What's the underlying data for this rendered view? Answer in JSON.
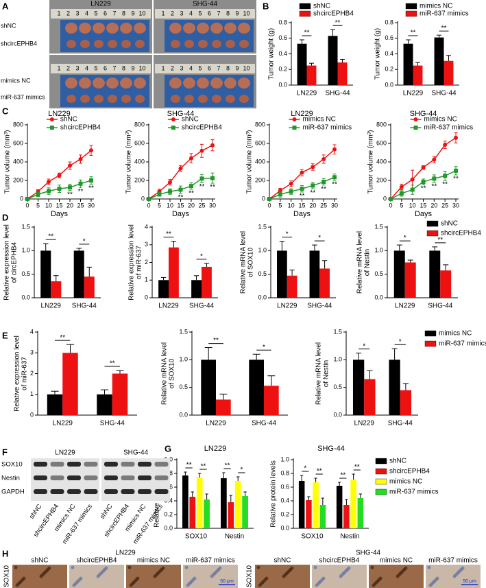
{
  "panel_a": {
    "letter": "A",
    "columns": [
      "LN229",
      "SHG-44"
    ],
    "rows": [
      "shNC",
      "shcircEPHB4",
      "mimics NC",
      "miR-637 mimics"
    ],
    "ruler": [
      "1",
      "2",
      "3",
      "4",
      "5",
      "6",
      "7",
      "8",
      "9",
      "10"
    ]
  },
  "chart_data": [
    {
      "type": "bar",
      "letter": "B",
      "ylabel": [
        "Tumor weight (g)"
      ],
      "categories": [
        "LN229",
        "SHG-44"
      ],
      "series": [
        {
          "name": "shNC",
          "color": "#000000",
          "values": [
            0.53,
            0.63
          ],
          "errors": [
            0.05,
            0.08
          ]
        },
        {
          "name": "shcircEPHB4",
          "color": "#ee1111",
          "values": [
            0.25,
            0.29
          ],
          "errors": [
            0.03,
            0.04
          ]
        }
      ],
      "ylim": [
        0,
        0.8
      ],
      "yticks": [
        {
          "value": 0,
          "label": "0.0"
        },
        0.2,
        0.4,
        0.6,
        0.8
      ],
      "legend": "top-left",
      "significance": [
        {
          "category": 0,
          "label": "**"
        },
        {
          "category": 1,
          "label": "**"
        }
      ]
    },
    {
      "type": "bar",
      "ylabel": [
        "Tumor weight (g)"
      ],
      "categories": [
        "LN229",
        "SHG-44"
      ],
      "series": [
        {
          "name": "mimics NC",
          "color": "#000000",
          "values": [
            0.53,
            0.61
          ],
          "errors": [
            0.05,
            0.03
          ]
        },
        {
          "name": "miR-637 mimics",
          "color": "#ee1111",
          "values": [
            0.25,
            0.31
          ],
          "errors": [
            0.04,
            0.07
          ]
        }
      ],
      "ylim": [
        0,
        0.8
      ],
      "yticks": [
        {
          "value": 0,
          "label": "0.0"
        },
        0.2,
        0.4,
        0.6,
        0.8
      ],
      "legend": "top-left",
      "significance": [
        {
          "category": 0,
          "label": "**"
        },
        {
          "category": 1,
          "label": "**"
        }
      ]
    },
    {
      "type": "line",
      "letter": "C",
      "title": "LN229",
      "xlabel": "Days",
      "ylabel": [
        "Tumor volume (mm³)"
      ],
      "x": [
        0,
        5,
        10,
        15,
        20,
        25,
        30
      ],
      "series": [
        {
          "name": "shNC",
          "color": "#ee1111",
          "marker": "circle",
          "values": [
            0,
            80,
            185,
            255,
            360,
            430,
            525
          ],
          "errors": [
            0,
            20,
            30,
            25,
            40,
            45,
            55
          ]
        },
        {
          "name": "shcircEPHB4",
          "color": "#1f9a2a",
          "marker": "square",
          "values": [
            0,
            50,
            85,
            110,
            125,
            165,
            200
          ],
          "errors": [
            0,
            25,
            35,
            40,
            35,
            40,
            40
          ]
        }
      ],
      "xlim": [
        0,
        30
      ],
      "xticks": [
        0,
        5,
        10,
        15,
        20,
        25,
        30
      ],
      "ylim": [
        0,
        800
      ],
      "yticks": [
        0,
        200,
        400,
        600,
        800
      ],
      "legend": "top",
      "significance": [
        {
          "x": 20,
          "label": "**"
        },
        {
          "x": 25,
          "label": "**"
        },
        {
          "x": 30,
          "label": "**"
        }
      ]
    },
    {
      "type": "line",
      "title": "SHG-44",
      "xlabel": "Days",
      "ylabel": [
        "Tumor volume (mm³)"
      ],
      "x": [
        0,
        5,
        10,
        15,
        20,
        25,
        30
      ],
      "series": [
        {
          "name": "shNC",
          "color": "#ee1111",
          "marker": "circle",
          "values": [
            0,
            80,
            180,
            330,
            440,
            520,
            580
          ],
          "errors": [
            0,
            25,
            30,
            30,
            50,
            70,
            60
          ]
        },
        {
          "name": "shcircEPHB4",
          "color": "#1f9a2a",
          "marker": "square",
          "values": [
            0,
            50,
            80,
            100,
            140,
            220,
            225
          ],
          "errors": [
            0,
            20,
            30,
            40,
            35,
            45,
            55
          ]
        }
      ],
      "xlim": [
        0,
        30
      ],
      "xticks": [
        0,
        5,
        10,
        15,
        20,
        25,
        30
      ],
      "ylim": [
        0,
        800
      ],
      "yticks": [
        0,
        200,
        400,
        600,
        800
      ],
      "legend": "top",
      "significance": [
        {
          "x": 15,
          "label": "**"
        },
        {
          "x": 20,
          "label": "**"
        },
        {
          "x": 25,
          "label": "**"
        },
        {
          "x": 30,
          "label": "**"
        }
      ]
    },
    {
      "type": "line",
      "title": "LN229",
      "xlabel": "Days",
      "ylabel": [
        "Tumor volume (mm³)"
      ],
      "x": [
        0,
        5,
        10,
        15,
        20,
        25,
        30
      ],
      "series": [
        {
          "name": "mimics NC",
          "color": "#ee1111",
          "marker": "circle",
          "values": [
            0,
            90,
            165,
            285,
            345,
            430,
            535
          ],
          "errors": [
            0,
            25,
            30,
            35,
            35,
            45,
            50
          ]
        },
        {
          "name": "miR-637 mimics",
          "color": "#1f9a2a",
          "marker": "square",
          "values": [
            0,
            50,
            80,
            110,
            145,
            185,
            235
          ],
          "errors": [
            0,
            30,
            30,
            35,
            35,
            35,
            35
          ]
        }
      ],
      "xlim": [
        0,
        30
      ],
      "xticks": [
        0,
        5,
        10,
        15,
        20,
        25,
        30
      ],
      "ylim": [
        0,
        800
      ],
      "yticks": [
        0,
        200,
        400,
        600,
        800
      ],
      "legend": "top",
      "significance": [
        {
          "x": 15,
          "label": "**"
        },
        {
          "x": 20,
          "label": "**"
        },
        {
          "x": 25,
          "label": "**"
        },
        {
          "x": 30,
          "label": "**"
        }
      ]
    },
    {
      "type": "line",
      "title": "SHG-44",
      "xlabel": "Days",
      "ylabel": [
        "Tumor volume (mm³)"
      ],
      "x": [
        0,
        5,
        10,
        15,
        20,
        25,
        30
      ],
      "series": [
        {
          "name": "mimics NC",
          "color": "#ee1111",
          "marker": "circle",
          "values": [
            0,
            130,
            210,
            340,
            425,
            585,
            660
          ],
          "errors": [
            0,
            30,
            100,
            20,
            35,
            40,
            55
          ]
        },
        {
          "name": "miR-637 mimics",
          "color": "#1f9a2a",
          "marker": "square",
          "values": [
            0,
            60,
            100,
            185,
            220,
            250,
            305
          ],
          "errors": [
            0,
            30,
            50,
            30,
            40,
            50,
            45
          ]
        }
      ],
      "xlim": [
        0,
        30
      ],
      "xticks": [
        0,
        5,
        10,
        15,
        20,
        25,
        30
      ],
      "ylim": [
        0,
        800
      ],
      "yticks": [
        0,
        200,
        400,
        600,
        800
      ],
      "legend": "top",
      "significance": [
        {
          "x": 15,
          "label": "**"
        },
        {
          "x": 20,
          "label": "**"
        },
        {
          "x": 25,
          "label": "**"
        },
        {
          "x": 30,
          "label": "**"
        }
      ]
    },
    {
      "type": "bar",
      "letter": "D",
      "ylabel": [
        "Relative expression level",
        "of circEPHB4"
      ],
      "categories": [
        "LN229",
        "SHG-44"
      ],
      "series": [
        {
          "color": "#000000",
          "values": [
            1.0,
            1.0
          ],
          "errors": [
            0.15,
            0.05
          ]
        },
        {
          "color": "#ee1111",
          "values": [
            0.35,
            0.45
          ],
          "errors": [
            0.12,
            0.2
          ]
        }
      ],
      "ylim": [
        0,
        1.5
      ],
      "yticks": [
        {
          "value": 0,
          "label": "0.0"
        },
        0.5,
        {
          "value": 1,
          "label": "1.0"
        },
        1.5
      ],
      "significance": [
        {
          "category": 0,
          "label": "**"
        },
        {
          "category": 1,
          "label": "*"
        }
      ]
    },
    {
      "type": "bar",
      "ylabel": [
        "Relative expression level",
        "of miR-637"
      ],
      "categories": [
        "LN229",
        "SHG-44"
      ],
      "series": [
        {
          "color": "#000000",
          "values": [
            1.0,
            1.0
          ],
          "errors": [
            0.15,
            0.25
          ]
        },
        {
          "color": "#ee1111",
          "values": [
            2.85,
            1.75
          ],
          "errors": [
            0.35,
            0.2
          ]
        }
      ],
      "ylim": [
        0,
        4
      ],
      "yticks": [
        0,
        1,
        2,
        3,
        4
      ],
      "significance": [
        {
          "category": 0,
          "label": "**"
        },
        {
          "category": 1,
          "label": "*"
        }
      ]
    },
    {
      "type": "bar",
      "ylabel": [
        "Relative mRNA level",
        "of SOX10"
      ],
      "categories": [
        "LN229",
        "SHG-44"
      ],
      "series": [
        {
          "color": "#000000",
          "values": [
            1.0,
            1.0
          ],
          "errors": [
            0.2,
            0.12
          ]
        },
        {
          "color": "#ee1111",
          "values": [
            0.47,
            0.62
          ],
          "errors": [
            0.12,
            0.17
          ]
        }
      ],
      "ylim": [
        0,
        1.5
      ],
      "yticks": [
        {
          "value": 0,
          "label": "0.0"
        },
        0.5,
        {
          "value": 1,
          "label": "1.0"
        },
        1.5
      ],
      "significance": [
        {
          "category": 0,
          "label": "*"
        },
        {
          "category": 1,
          "label": "*"
        }
      ]
    },
    {
      "type": "bar",
      "ylabel": [
        "Relative mRNA level",
        "of Nestin"
      ],
      "categories": [
        "LN229",
        "SHG-44"
      ],
      "series": [
        {
          "name": "shNC",
          "color": "#000000",
          "values": [
            1.0,
            1.0
          ],
          "errors": [
            0.12,
            0.08
          ]
        },
        {
          "name": "shcircEPHB4",
          "color": "#ee1111",
          "values": [
            0.75,
            0.58
          ],
          "errors": [
            0.05,
            0.12
          ]
        }
      ],
      "ylim": [
        0,
        1.5
      ],
      "yticks": [
        {
          "value": 0,
          "label": "0.0"
        },
        0.5,
        {
          "value": 1,
          "label": "1.0"
        },
        1.5
      ],
      "legend": "top-right",
      "significance": [
        {
          "category": 0,
          "label": "*"
        },
        {
          "category": 1,
          "label": "**"
        }
      ]
    },
    {
      "type": "bar",
      "letter": "E",
      "ylabel": [
        "Relative expression level",
        "of miR-637"
      ],
      "categories": [
        "LN229",
        "SHG-44"
      ],
      "series": [
        {
          "color": "#000000",
          "values": [
            1.0,
            1.0
          ],
          "errors": [
            0.15,
            0.22
          ]
        },
        {
          "color": "#ee1111",
          "values": [
            3.0,
            2.0
          ],
          "errors": [
            0.4,
            0.15
          ]
        }
      ],
      "ylim": [
        0,
        4
      ],
      "yticks": [
        0,
        1,
        2,
        3,
        4
      ],
      "significance": [
        {
          "category": 0,
          "label": "**"
        },
        {
          "category": 1,
          "label": "**"
        }
      ]
    },
    {
      "type": "bar",
      "ylabel": [
        "Relative mRNA level",
        "of SOX10"
      ],
      "categories": [
        "LN229",
        "SHG-44"
      ],
      "series": [
        {
          "color": "#000000",
          "values": [
            1.0,
            1.0
          ],
          "errors": [
            0.22,
            0.1
          ]
        },
        {
          "color": "#ee1111",
          "values": [
            0.28,
            0.53
          ],
          "errors": [
            0.1,
            0.18
          ]
        }
      ],
      "ylim": [
        0,
        1.5
      ],
      "yticks": [
        {
          "value": 0,
          "label": "0.0"
        },
        0.5,
        {
          "value": 1,
          "label": "1.0"
        },
        1.5
      ],
      "significance": [
        {
          "category": 0,
          "label": "**"
        },
        {
          "category": 1,
          "label": "*"
        }
      ]
    },
    {
      "type": "bar",
      "ylabel": [
        "Relative mRNA level",
        "of Nestin"
      ],
      "categories": [
        "LN229",
        "SHG-44"
      ],
      "series": [
        {
          "name": "mimics NC",
          "color": "#000000",
          "values": [
            1.0,
            1.0
          ],
          "errors": [
            0.12,
            0.2
          ]
        },
        {
          "name": "miR-637 mimics",
          "color": "#ee1111",
          "values": [
            0.65,
            0.45
          ],
          "errors": [
            0.15,
            0.12
          ]
        }
      ],
      "ylim": [
        0,
        1.5
      ],
      "yticks": [
        {
          "value": 0,
          "label": "0.0"
        },
        0.5,
        {
          "value": 1,
          "label": "1.0"
        },
        1.5
      ],
      "legend": "right",
      "significance": [
        {
          "category": 0,
          "label": "*"
        },
        {
          "category": 1,
          "label": "*"
        }
      ]
    },
    {
      "type": "bar",
      "letter": "G",
      "title": "LN229",
      "ylabel": [
        "Relative protein levels"
      ],
      "categories": [
        "SOX10",
        "Nestin"
      ],
      "series": [
        {
          "color": "#000000",
          "values": [
            0.77,
            0.73
          ],
          "errors": [
            0.05,
            0.08
          ]
        },
        {
          "color": "#ee1111",
          "values": [
            0.46,
            0.38
          ],
          "errors": [
            0.07,
            0.1
          ]
        },
        {
          "color": "#ffff00",
          "values": [
            0.74,
            0.69
          ],
          "errors": [
            0.06,
            0.06
          ]
        },
        {
          "color": "#22dd22",
          "values": [
            0.42,
            0.47
          ],
          "errors": [
            0.08,
            0.06
          ]
        }
      ],
      "ylim": [
        0,
        1
      ],
      "yticks": [
        {
          "value": 0,
          "label": "0.0"
        },
        0.2,
        0.4,
        0.6,
        0.8,
        {
          "value": 1,
          "label": "1.0"
        }
      ],
      "significance": [
        {
          "category": 0,
          "label": "**"
        },
        {
          "category": 0,
          "label": "**"
        },
        {
          "category": 1,
          "label": "**"
        },
        {
          "category": 1,
          "label": "*"
        }
      ]
    },
    {
      "type": "bar",
      "title": "SHG-44",
      "ylabel": [
        "Relative protein levels"
      ],
      "categories": [
        "SOX10",
        "Nestin"
      ],
      "series": [
        {
          "name": "shNC",
          "color": "#000000",
          "values": [
            0.69,
            0.62
          ],
          "errors": [
            0.08,
            0.05
          ]
        },
        {
          "name": "shcircEPHB4",
          "color": "#ee1111",
          "values": [
            0.41,
            0.34
          ],
          "errors": [
            0.05,
            0.08
          ]
        },
        {
          "name": "mimics NC",
          "color": "#ffff00",
          "values": [
            0.67,
            0.71
          ],
          "errors": [
            0.06,
            0.08
          ]
        },
        {
          "name": "miR-637 mimics",
          "color": "#22dd22",
          "values": [
            0.34,
            0.44
          ],
          "errors": [
            0.1,
            0.06
          ]
        }
      ],
      "ylim": [
        0,
        1
      ],
      "yticks": [
        {
          "value": 0,
          "label": "0.0"
        },
        0.2,
        0.4,
        0.6,
        0.8,
        {
          "value": 1,
          "label": "1.0"
        }
      ],
      "legend": "right",
      "significance": [
        {
          "category": 0,
          "label": "*"
        },
        {
          "category": 0,
          "label": "**"
        },
        {
          "category": 1,
          "label": "**"
        },
        {
          "category": 1,
          "label": "**"
        }
      ]
    }
  ],
  "panel_f": {
    "letter": "F",
    "groups": [
      "LN229",
      "SHG-44"
    ],
    "rows": [
      "SOX10",
      "Nestin",
      "GAPDH"
    ],
    "lanes": [
      "shNC",
      "shcircEPHB4",
      "mimics NC",
      "miR-637 mimics"
    ]
  },
  "panel_h": {
    "letter": "H",
    "groups": [
      "LN229",
      "SHG-44"
    ],
    "lanes": [
      "shNC",
      "shcircEPHB4",
      "mimics NC",
      "miR-637 mimics"
    ],
    "row": "SOX10",
    "scale_bar": "50 μm"
  }
}
